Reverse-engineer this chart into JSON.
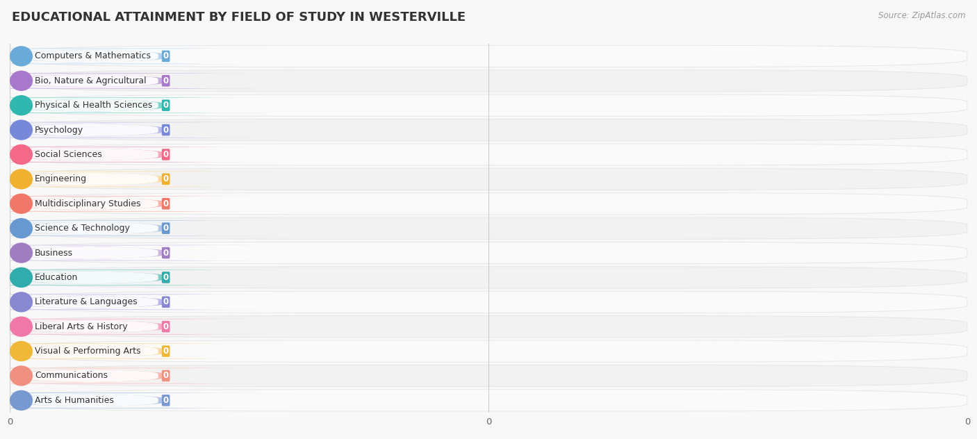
{
  "title": "EDUCATIONAL ATTAINMENT BY FIELD OF STUDY IN WESTERVILLE",
  "source": "Source: ZipAtlas.com",
  "categories": [
    "Computers & Mathematics",
    "Bio, Nature & Agricultural",
    "Physical & Health Sciences",
    "Psychology",
    "Social Sciences",
    "Engineering",
    "Multidisciplinary Studies",
    "Science & Technology",
    "Business",
    "Education",
    "Literature & Languages",
    "Liberal Arts & History",
    "Visual & Performing Arts",
    "Communications",
    "Arts & Humanities"
  ],
  "values": [
    0,
    0,
    0,
    0,
    0,
    0,
    0,
    0,
    0,
    0,
    0,
    0,
    0,
    0,
    0
  ],
  "bar_colors": [
    "#b8d4ee",
    "#c8aadc",
    "#7ed8cc",
    "#b8bcec",
    "#f8a8bc",
    "#fcd89c",
    "#f8b4aa",
    "#b0c8e8",
    "#ccb8e0",
    "#80ccc8",
    "#b8b8ec",
    "#f8aac4",
    "#fcd8a0",
    "#f8b8aa",
    "#b0c4e8"
  ],
  "circle_colors": [
    "#6aaad8",
    "#a878cc",
    "#30b8b0",
    "#7888d8",
    "#f46888",
    "#f0b030",
    "#f07868",
    "#6898d0",
    "#a07cc0",
    "#30acac",
    "#8888d0",
    "#f078a8",
    "#f0b838",
    "#f09080",
    "#7898d0"
  ],
  "bg_color": "#f8f8f8",
  "title_fontsize": 13,
  "label_fontsize": 9,
  "value_fontsize": 8.5
}
